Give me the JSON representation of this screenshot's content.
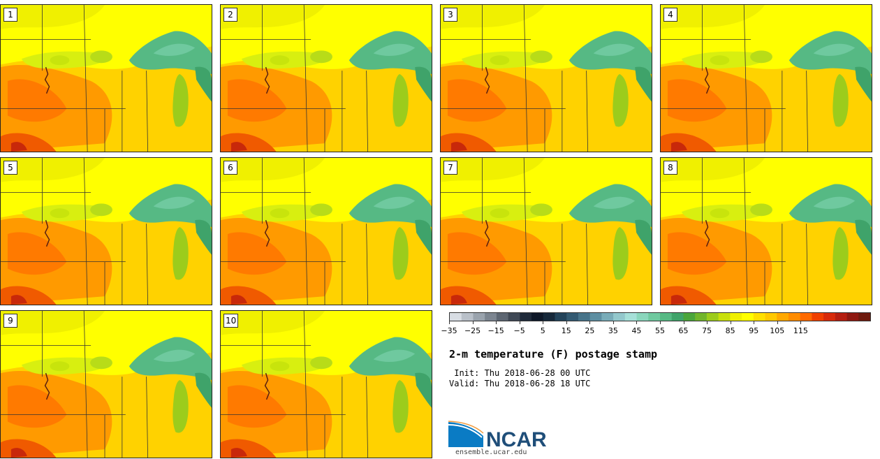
{
  "panels": [
    {
      "label": "1"
    },
    {
      "label": "2"
    },
    {
      "label": "3"
    },
    {
      "label": "4"
    },
    {
      "label": "5"
    },
    {
      "label": "6"
    },
    {
      "label": "7"
    },
    {
      "label": "8"
    },
    {
      "label": "9"
    },
    {
      "label": "10"
    }
  ],
  "colorbar": {
    "colors": [
      "#d8dde4",
      "#b9c0c9",
      "#9aa3ad",
      "#7c8590",
      "#5d6672",
      "#3f4855",
      "#1f2a3a",
      "#0e1828",
      "#16283a",
      "#23435a",
      "#335a72",
      "#47748a",
      "#5e8fa2",
      "#79acb8",
      "#93c8cc",
      "#a6e0d8",
      "#8ad6bc",
      "#6fc99f",
      "#56b984",
      "#3fa36a",
      "#4aa53b",
      "#71b52b",
      "#9ccc1c",
      "#c8e00c",
      "#f0f000",
      "#ffff00",
      "#ffe000",
      "#ffc800",
      "#ffa800",
      "#ff8c00",
      "#ff6a00",
      "#f04000",
      "#d82a0a",
      "#b51e10",
      "#8e1810",
      "#6e1a0e"
    ],
    "tick_labels": [
      "−35",
      "−25",
      "−15",
      "−5",
      "5",
      "15",
      "25",
      "35",
      "45",
      "55",
      "65",
      "75",
      "85",
      "95",
      "105",
      "115"
    ]
  },
  "title": "2-m temperature (F) postage stamp",
  "init_line": " Init: Thu 2018-06-28 00 UTC",
  "valid_line": "Valid: Thu 2018-06-28 18 UTC",
  "logo": {
    "text": "NCAR",
    "url": "ensemble.ucar.edu",
    "brand_color": "#1f4e79",
    "swoosh_color": "#0a7bc4"
  }
}
